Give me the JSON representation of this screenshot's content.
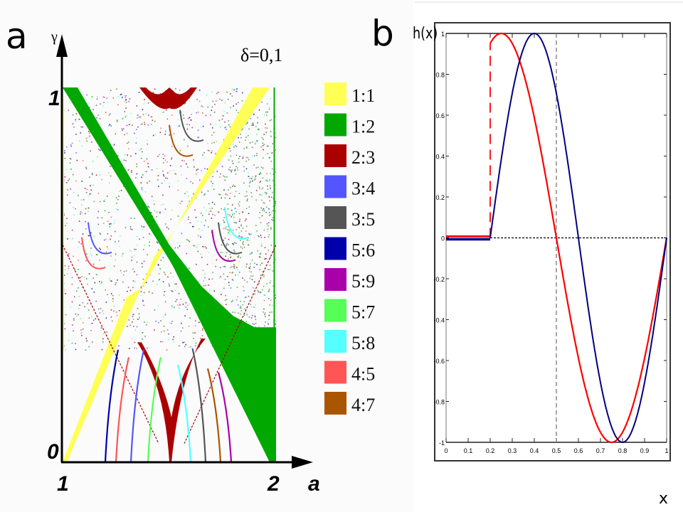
{
  "figure": {
    "panel_a_letter": "a",
    "panel_b_letter": "b"
  },
  "chart_data": [
    {
      "type": "heatmap",
      "title": "δ=0,1",
      "xlabel": "a",
      "ylabel": "γ",
      "xlim": [
        1,
        2
      ],
      "ylim": [
        0,
        1
      ],
      "x_tick_labels": [
        "1",
        "2"
      ],
      "y_tick_labels": [
        "0",
        "1"
      ],
      "legend_position": "right",
      "legend": [
        {
          "label": "1:1",
          "color": "#ffff55"
        },
        {
          "label": "1:2",
          "color": "#00a800"
        },
        {
          "label": "2:3",
          "color": "#aa0000"
        },
        {
          "label": "3:4",
          "color": "#5555ff"
        },
        {
          "label": "3:5",
          "color": "#555555"
        },
        {
          "label": "5:6",
          "color": "#0000aa"
        },
        {
          "label": "5:9",
          "color": "#aa00aa"
        },
        {
          "label": "5:7",
          "color": "#55ff55"
        },
        {
          "label": "5:8",
          "color": "#55ffff"
        },
        {
          "label": "4:5",
          "color": "#ff5555"
        },
        {
          "label": "4:7",
          "color": "#aa5500"
        }
      ],
      "regions": [
        {
          "name": "1:1",
          "description": "yellow tongue rising from (1,0) to (2,1)"
        },
        {
          "name": "1:2",
          "description": "green tongue falling from (1,1) to (2,0)"
        },
        {
          "name": "2:3",
          "description": "dark red cusp at top near a=1.4; tongues at bottom near a=1.5"
        }
      ]
    },
    {
      "type": "line",
      "title": "",
      "ylabel": "h(x)",
      "xlabel": "x",
      "xlim": [
        0,
        1
      ],
      "ylim": [
        -1,
        1
      ],
      "x_ticks": [
        0,
        0.1,
        0.2,
        0.3,
        0.4,
        0.5,
        0.6,
        0.7,
        0.8,
        0.9,
        1
      ],
      "x_tick_labels": [
        "0",
        "0.1",
        "0.2",
        "0.3",
        "0.4",
        "0.5",
        "0.6",
        "0.7",
        "0.8",
        "0.9",
        "1"
      ],
      "y_ticks": [
        -1,
        -0.8,
        -0.6,
        -0.4,
        -0.2,
        0,
        0.2,
        0.4,
        0.6,
        0.8,
        1
      ],
      "y_tick_labels": [
        "-1",
        "-0.8",
        "-0.6",
        "-0.4",
        "-0.2",
        "0",
        "0.2",
        "0.4",
        "0.6",
        "0.8",
        "1"
      ],
      "reference_lines": [
        {
          "orientation": "horizontal",
          "value": 0,
          "style": "dotted",
          "color": "#000000"
        },
        {
          "orientation": "vertical",
          "value": 0.5,
          "style": "dashed",
          "color": "#888888"
        }
      ],
      "series": [
        {
          "name": "red",
          "color": "#ff0000",
          "x": [
            0,
            0.2,
            0.2,
            0.25,
            0.3,
            0.35,
            0.4,
            0.45,
            0.5,
            0.55,
            0.6,
            0.65,
            0.7,
            0.75,
            0.8,
            0.85,
            0.9,
            0.95,
            1.0
          ],
          "y": [
            0,
            0,
            0.951,
            1.0,
            0.951,
            0.809,
            0.588,
            0.309,
            0,
            -0.309,
            -0.588,
            -0.809,
            -0.951,
            -1.0,
            -0.951,
            -0.809,
            -0.588,
            -0.309,
            0
          ],
          "jump_style": "dashed"
        },
        {
          "name": "blue",
          "color": "#000080",
          "x": [
            0,
            0.2,
            0.25,
            0.3,
            0.35,
            0.4,
            0.45,
            0.5,
            0.55,
            0.6,
            0.65,
            0.7,
            0.75,
            0.8,
            0.85,
            0.9,
            0.95,
            1.0
          ],
          "y": [
            0,
            0,
            0.383,
            0.707,
            0.924,
            1.0,
            0.924,
            0.707,
            0.383,
            0,
            -0.383,
            -0.707,
            -0.924,
            -1.0,
            -0.924,
            -0.707,
            -0.383,
            0
          ]
        }
      ]
    }
  ]
}
